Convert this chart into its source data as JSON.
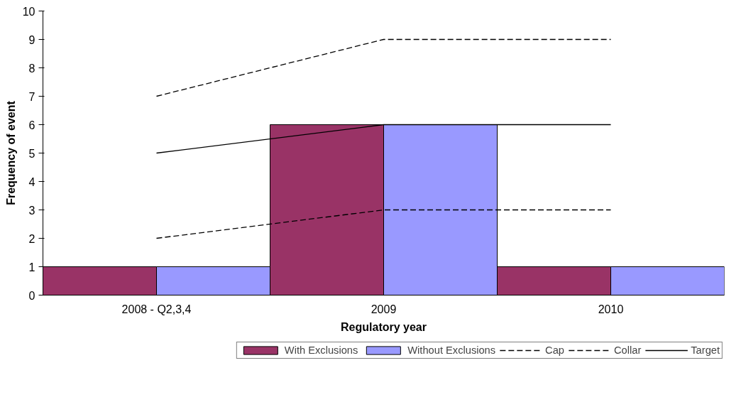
{
  "chart_data": {
    "type": "bar",
    "xlabel": "Regulatory year",
    "ylabel": "Frequency of event",
    "categories": [
      "2008 - Q2,3,4",
      "2009",
      "2010"
    ],
    "ylim": [
      0,
      10
    ],
    "yticks": [
      0,
      1,
      2,
      3,
      4,
      5,
      6,
      7,
      8,
      9,
      10
    ],
    "grid": false,
    "legend": "bottom",
    "series": [
      {
        "name": "With Exclusions",
        "color": "#993366",
        "values": [
          1,
          6,
          1
        ]
      },
      {
        "name": "Without Exclusions",
        "color": "#9999ff",
        "values": [
          1,
          6,
          1
        ]
      },
      {
        "name": "Cap",
        "type": "line",
        "line_style": "dashed",
        "color": "#000000",
        "values": [
          7,
          9,
          9
        ]
      },
      {
        "name": "Collar",
        "type": "line",
        "line_style": "dashed",
        "color": "#000000",
        "values": [
          2,
          3,
          3
        ]
      },
      {
        "name": "Target",
        "type": "line",
        "line_style": "solid",
        "color": "#000000",
        "values": [
          5,
          6,
          6
        ]
      }
    ]
  }
}
